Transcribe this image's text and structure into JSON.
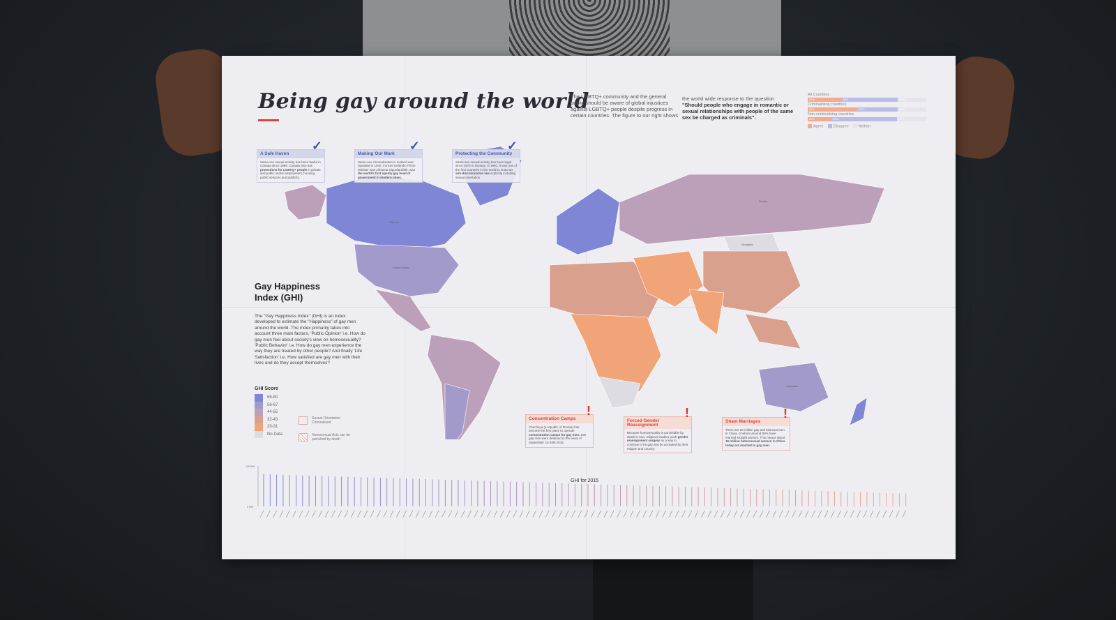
{
  "poster": {
    "title": "Being gay around the world",
    "intro": "The LGBTQ+ community and the general public should be aware of global injustices against LGBTQ+ people despite progress in certain countries. The figure to our right shows",
    "question_lead": "the world wide response to the question",
    "question": "\"Should people who engage in romantic or sexual relationships with people of the same sex be charged as criminals\".",
    "survey": {
      "rows": [
        {
          "label": "All Countries",
          "agree": 28,
          "disagree": 48,
          "neither": 24
        },
        {
          "label": "Criminalising countries",
          "agree": 42,
          "disagree": 34,
          "neither": 24
        },
        {
          "label": "Non-criminalising countries",
          "agree": 20,
          "disagree": 55,
          "neither": 25
        }
      ],
      "legend": [
        "Agree",
        "Disagree",
        "Neither"
      ],
      "colors": {
        "agree": "#f2ab8e",
        "disagree": "#b9bde6",
        "neither": "#e4e4ea"
      }
    },
    "positive_callouts": [
      {
        "title": "A Safe Haven",
        "text": "Same-sex sexual activity has been lawful in Canada since 1969. Canada also has",
        "bold": "protections for LGBTQ+ people",
        "tail": "in private and public sector employment, housing, public services and publicity."
      },
      {
        "title": "Making Our Mark",
        "text": "Same-sex criminalisation in Iceland was repealed in 1940. Former Icelandic Prime Minister was Jóhanna Sigurðardóttir, was",
        "bold": "the world's first openly gay head of government in modern times.",
        "tail": ""
      },
      {
        "title": "Protecting the Community",
        "text": "Same-sex sexual activity has been legal since 1972 in Norway. In 1981, it was one of the first countries in the world to enact an",
        "bold": "anti-discrimination law",
        "tail": "explicitly including sexual orientation."
      }
    ],
    "warning_callouts": [
      {
        "title": "Concentration Camps",
        "text": "Chechnya (a republic of Russia) has become the first place to operate",
        "bold": "concentration camps for gay men.",
        "tail": "100 gay men were detained in the week of September 23-29th 2018."
      },
      {
        "title": "Forced Gender Reassignment",
        "text": "Because homosexuality is punishable by death in Iran, religious leaders push",
        "bold": "gender reassignment surgery",
        "tail": "as a way to continue to be gay and be accepted by their religion and country."
      },
      {
        "title": "Sham Marriages",
        "text": "There are 20 million gay and bisexual men in China, of whom around 80% have married straight women. This means about",
        "bold": "16 million heterosexual women in China today are married to gay men.",
        "tail": ""
      }
    ],
    "ghi": {
      "title_line1": "Gay Happiness",
      "title_line2": "Index (GHI)",
      "description": "The \"Gay Happiness Index\" (GHI) is an index developed to estimate the \"Happiness\" of gay men around the world. The index primarily takes into account three main factors, 'Public Opinion' i.e. How do gay men feel about society's view on homosexuality? 'Public Behavior' i.e. How do gay men experience the way they are treated by other people? And finally 'Life Satisfaction' i.e. How satisfied are gay men with their lives and do they accept themselves?",
      "legend_title": "GHI Score",
      "legend": [
        {
          "label": "68-80",
          "color": "#7f86d6"
        },
        {
          "label": "56-67",
          "color": "#a19acb"
        },
        {
          "label": "44-55",
          "color": "#bc9fb8"
        },
        {
          "label": "32-43",
          "color": "#d9a08d"
        },
        {
          "label": "20-31",
          "color": "#f0a478"
        },
        {
          "label": "No Data",
          "color": "#dcdce2"
        }
      ],
      "criminalised_label": "Sexual Orientation Criminalised",
      "death_label": "Homosexual Acts can be punished by death"
    },
    "map_labels": {
      "canada": "Canada",
      "usa": "United States",
      "greenland": "Greenland",
      "russia": "Russia",
      "mongolia": "Mongolia",
      "australia": "Australia"
    },
    "chart": {
      "title": "GHI for 2015",
      "y_top": "100 GHI",
      "y_bottom": "0 GHI"
    }
  }
}
